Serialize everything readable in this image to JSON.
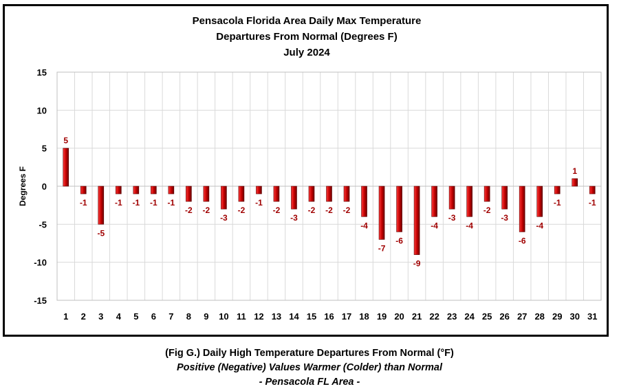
{
  "chart_data": {
    "type": "bar",
    "title": [
      "Pensacola Florida Area Daily Max Temperature",
      "Departures From Normal (Degrees F)",
      "July 2024"
    ],
    "ylabel": "Degrees F",
    "xlabel": "",
    "ylim": [
      -15,
      15
    ],
    "yticks": [
      15,
      10,
      5,
      0,
      -5,
      -10,
      -15
    ],
    "grid": true,
    "legend": "none",
    "bar_color": "#c00000",
    "label_color": "#a00000",
    "categories": [
      "1",
      "2",
      "3",
      "4",
      "5",
      "6",
      "7",
      "8",
      "9",
      "10",
      "11",
      "12",
      "13",
      "14",
      "15",
      "16",
      "17",
      "18",
      "19",
      "20",
      "21",
      "22",
      "23",
      "24",
      "25",
      "26",
      "27",
      "28",
      "29",
      "30",
      "31"
    ],
    "values": [
      5,
      -1,
      -5,
      -1,
      -1,
      -1,
      -1,
      -2,
      -2,
      -3,
      -2,
      -1,
      -2,
      -3,
      -2,
      -2,
      -2,
      -4,
      -7,
      -6,
      -9,
      -4,
      -3,
      -4,
      -2,
      -3,
      -6,
      -4,
      -1,
      1,
      -1
    ]
  },
  "caption": {
    "line1": "(Fig G.) Daily High Temperature Departures From Normal (°F)",
    "line2": "Positive (Negative) Values Warmer (Colder) than Normal",
    "line3": "- Pensacola FL Area -"
  }
}
